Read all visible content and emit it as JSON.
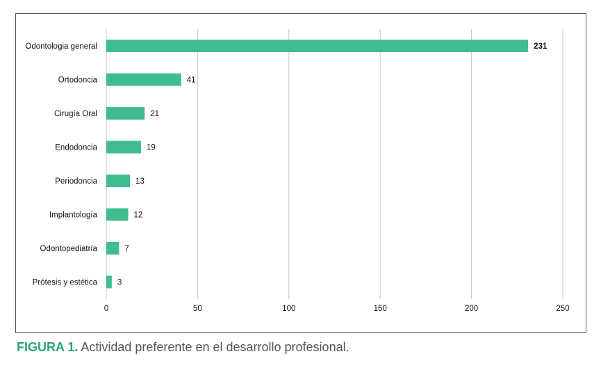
{
  "chart_data": {
    "type": "bar",
    "orientation": "horizontal",
    "categories": [
      "Odontologia general",
      "Ortodoncia",
      "Cirugía Oral",
      "Endodoncia",
      "Periodoncia",
      "Implantología",
      "Odontopediatría",
      "Prótesis y estética"
    ],
    "values": [
      231,
      41,
      21,
      19,
      13,
      12,
      7,
      3
    ],
    "xlim": [
      0,
      250
    ],
    "xticks": [
      0,
      50,
      100,
      150,
      200,
      250
    ],
    "grid": true,
    "bar_color": "#40bd8e"
  },
  "caption": {
    "number": "FIGURA 1.",
    "text": "Actividad preferente en el desarrollo profesional."
  }
}
